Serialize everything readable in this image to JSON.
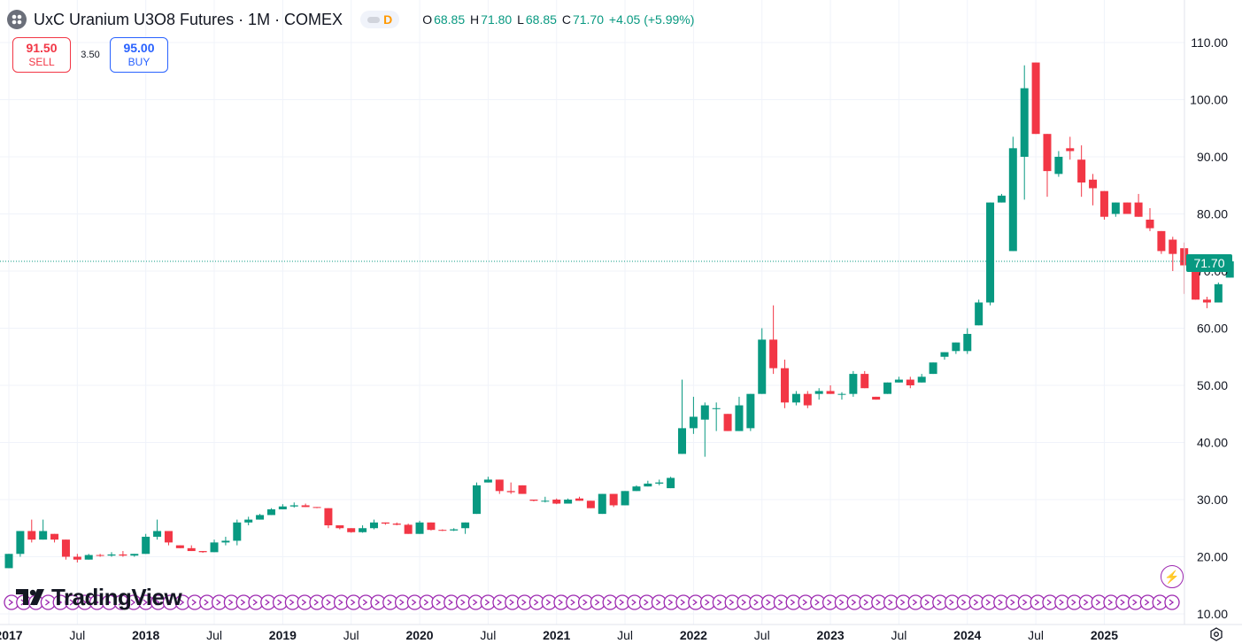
{
  "header": {
    "title": "UxC Uranium U3O8 Futures · 1M · COMEX",
    "badge": "D",
    "ohlc": {
      "o_label": "O",
      "o": "68.85",
      "h_label": "H",
      "h": "71.80",
      "l_label": "L",
      "l": "68.85",
      "c_label": "C",
      "c": "71.70",
      "change": "+4.05 (+5.99%)"
    }
  },
  "trade": {
    "sell_price": "91.50",
    "sell_label": "SELL",
    "spread": "3.50",
    "buy_price": "95.00",
    "buy_label": "BUY"
  },
  "logo": {
    "text": "TradingView"
  },
  "colors": {
    "up": "#089981",
    "down": "#f23645",
    "grid": "#f0f3fa",
    "text": "#131722",
    "event": "#9c27b0"
  },
  "chart_data": {
    "type": "candlestick",
    "title": "UxC Uranium U3O8 Futures",
    "interval": "1M",
    "exchange": "COMEX",
    "ylim": [
      10,
      110
    ],
    "y_ticks": [
      "110.00",
      "100.00",
      "90.00",
      "80.00",
      "70.00",
      "60.00",
      "50.00",
      "40.00",
      "30.00",
      "20.00",
      "10.00"
    ],
    "x_ticks": [
      "2017",
      "Jul",
      "2018",
      "Jul",
      "2019",
      "Jul",
      "2020",
      "Jul",
      "2021",
      "Jul",
      "2022",
      "Jul",
      "2023",
      "Jul",
      "2024",
      "Jul",
      "2025"
    ],
    "last_price": "71.70",
    "start": "2017-01",
    "candles": [
      [
        18,
        20.5,
        18,
        20.5
      ],
      [
        20.5,
        24.5,
        20,
        24.5
      ],
      [
        24.5,
        26.5,
        22.5,
        23
      ],
      [
        23,
        26.5,
        23,
        24.5
      ],
      [
        24,
        24,
        22.5,
        23
      ],
      [
        23,
        23,
        19.5,
        20
      ],
      [
        20,
        20.5,
        19,
        19.5
      ],
      [
        19.5,
        20.5,
        19.5,
        20.3
      ],
      [
        20.3,
        20.5,
        20,
        20.2
      ],
      [
        20.2,
        20.8,
        20,
        20.4
      ],
      [
        20.4,
        21,
        20,
        20.2
      ],
      [
        20.2,
        20.5,
        20,
        20.5
      ],
      [
        20.5,
        24,
        20.5,
        23.5
      ],
      [
        23.5,
        26.5,
        23,
        24.5
      ],
      [
        24.5,
        24.5,
        22,
        22.5
      ],
      [
        22,
        22,
        21.5,
        21.5
      ],
      [
        21.5,
        22,
        21,
        21
      ],
      [
        21,
        21,
        20.7,
        20.8
      ],
      [
        20.8,
        23,
        20.8,
        22.5
      ],
      [
        22.5,
        23.5,
        22,
        22.8
      ],
      [
        22.8,
        26.5,
        22,
        26
      ],
      [
        26,
        27,
        25.5,
        26.5
      ],
      [
        26.5,
        27.5,
        26.5,
        27.3
      ],
      [
        27.3,
        28.5,
        27.3,
        28.3
      ],
      [
        28.3,
        29.2,
        28.3,
        28.8
      ],
      [
        28.8,
        29.5,
        28.6,
        29
      ],
      [
        29,
        29.3,
        28.7,
        28.7
      ],
      [
        28.7,
        28.7,
        28.5,
        28.6
      ],
      [
        28.5,
        28.5,
        25,
        25.5
      ],
      [
        25.5,
        25.5,
        24.8,
        25
      ],
      [
        25,
        25,
        24.2,
        24.3
      ],
      [
        24.3,
        25.5,
        24.2,
        25
      ],
      [
        25,
        26.5,
        24.8,
        26
      ],
      [
        26,
        26,
        25.6,
        25.8
      ],
      [
        25.8,
        26,
        25.5,
        25.6
      ],
      [
        25.6,
        25.8,
        24,
        24
      ],
      [
        24,
        26.3,
        24,
        26
      ],
      [
        26,
        26,
        24.6,
        24.7
      ],
      [
        24.7,
        24.8,
        24.5,
        24.6
      ],
      [
        24.6,
        25,
        24.5,
        24.8
      ],
      [
        25,
        26,
        24,
        26
      ],
      [
        27.5,
        33,
        27.5,
        32.5
      ],
      [
        33,
        34,
        33,
        33.5
      ],
      [
        33.5,
        33.5,
        31,
        31.5
      ],
      [
        31.5,
        33,
        31,
        31.3
      ],
      [
        32.5,
        32.5,
        31,
        31
      ],
      [
        30,
        30,
        29.7,
        29.8
      ],
      [
        29.8,
        30.5,
        29.5,
        29.8
      ],
      [
        30,
        30.2,
        29.2,
        29.3
      ],
      [
        29.3,
        30.2,
        29.3,
        30
      ],
      [
        30.2,
        30.5,
        29.8,
        29.8
      ],
      [
        29.8,
        29.8,
        28.5,
        28.5
      ],
      [
        27.5,
        31,
        27.5,
        31
      ],
      [
        31,
        31,
        28.7,
        29
      ],
      [
        29,
        31.5,
        29,
        31.5
      ],
      [
        31.5,
        32.5,
        31.5,
        32.3
      ],
      [
        32.3,
        33.3,
        32.3,
        32.8
      ],
      [
        32.8,
        33.5,
        32.5,
        33
      ],
      [
        32,
        34,
        32,
        33.8
      ],
      [
        38,
        51,
        38,
        42.5
      ],
      [
        42.5,
        48,
        41.5,
        44.5
      ],
      [
        44,
        47,
        37.5,
        46.5
      ],
      [
        46,
        47,
        42,
        46
      ],
      [
        45,
        45,
        42,
        42
      ],
      [
        42,
        48,
        42,
        46.5
      ],
      [
        42.5,
        48.5,
        42,
        48.5
      ],
      [
        48.5,
        60,
        48.5,
        58
      ],
      [
        58,
        64,
        52,
        53
      ],
      [
        53,
        54.5,
        46,
        47
      ],
      [
        47,
        49,
        46.5,
        48.5
      ],
      [
        48.5,
        49,
        46,
        46.5
      ],
      [
        48.5,
        49.5,
        47.5,
        49
      ],
      [
        49,
        50,
        48.5,
        48.5
      ],
      [
        48.5,
        48.8,
        47.5,
        48.5
      ],
      [
        48.5,
        52.5,
        48,
        52
      ],
      [
        52,
        52.5,
        49.5,
        49.5
      ],
      [
        48,
        48,
        47.5,
        47.5
      ],
      [
        48.5,
        50.5,
        48.5,
        50.5
      ],
      [
        50.5,
        51.5,
        50.5,
        51
      ],
      [
        51,
        51.5,
        49.5,
        50
      ],
      [
        50.5,
        52,
        50.5,
        51.5
      ],
      [
        52,
        54,
        52,
        54
      ],
      [
        55,
        55.8,
        54.5,
        55.8
      ],
      [
        56,
        57.5,
        55.5,
        57.5
      ],
      [
        56,
        60,
        55.5,
        59
      ],
      [
        60.5,
        65,
        60.5,
        64.5
      ],
      [
        64.5,
        82,
        64,
        82
      ],
      [
        82,
        83.5,
        82,
        83.2
      ],
      [
        73.5,
        93.5,
        73.5,
        91.5
      ],
      [
        90,
        106,
        82.5,
        102
      ],
      [
        106.5,
        106.5,
        94,
        94
      ],
      [
        94,
        94,
        83,
        87.5
      ],
      [
        87,
        91,
        86.5,
        90
      ],
      [
        91.5,
        93.5,
        89.5,
        91
      ],
      [
        89.5,
        92,
        83,
        85.5
      ],
      [
        86,
        87,
        81.5,
        84.5
      ],
      [
        84,
        84,
        79,
        79.5
      ],
      [
        80,
        82,
        79.5,
        82
      ],
      [
        82,
        82,
        80,
        80
      ],
      [
        82,
        83.5,
        79.5,
        79.5
      ],
      [
        79,
        81,
        77,
        77.5
      ],
      [
        77,
        77,
        73,
        73.5
      ],
      [
        75.5,
        76,
        70,
        73
      ],
      [
        74,
        75,
        66,
        71
      ],
      [
        71,
        71,
        65,
        65
      ],
      [
        65,
        65.5,
        63.5,
        64.5
      ],
      [
        64.5,
        68,
        64.5,
        67.7
      ],
      [
        68.85,
        71.8,
        68.85,
        71.7
      ]
    ]
  }
}
